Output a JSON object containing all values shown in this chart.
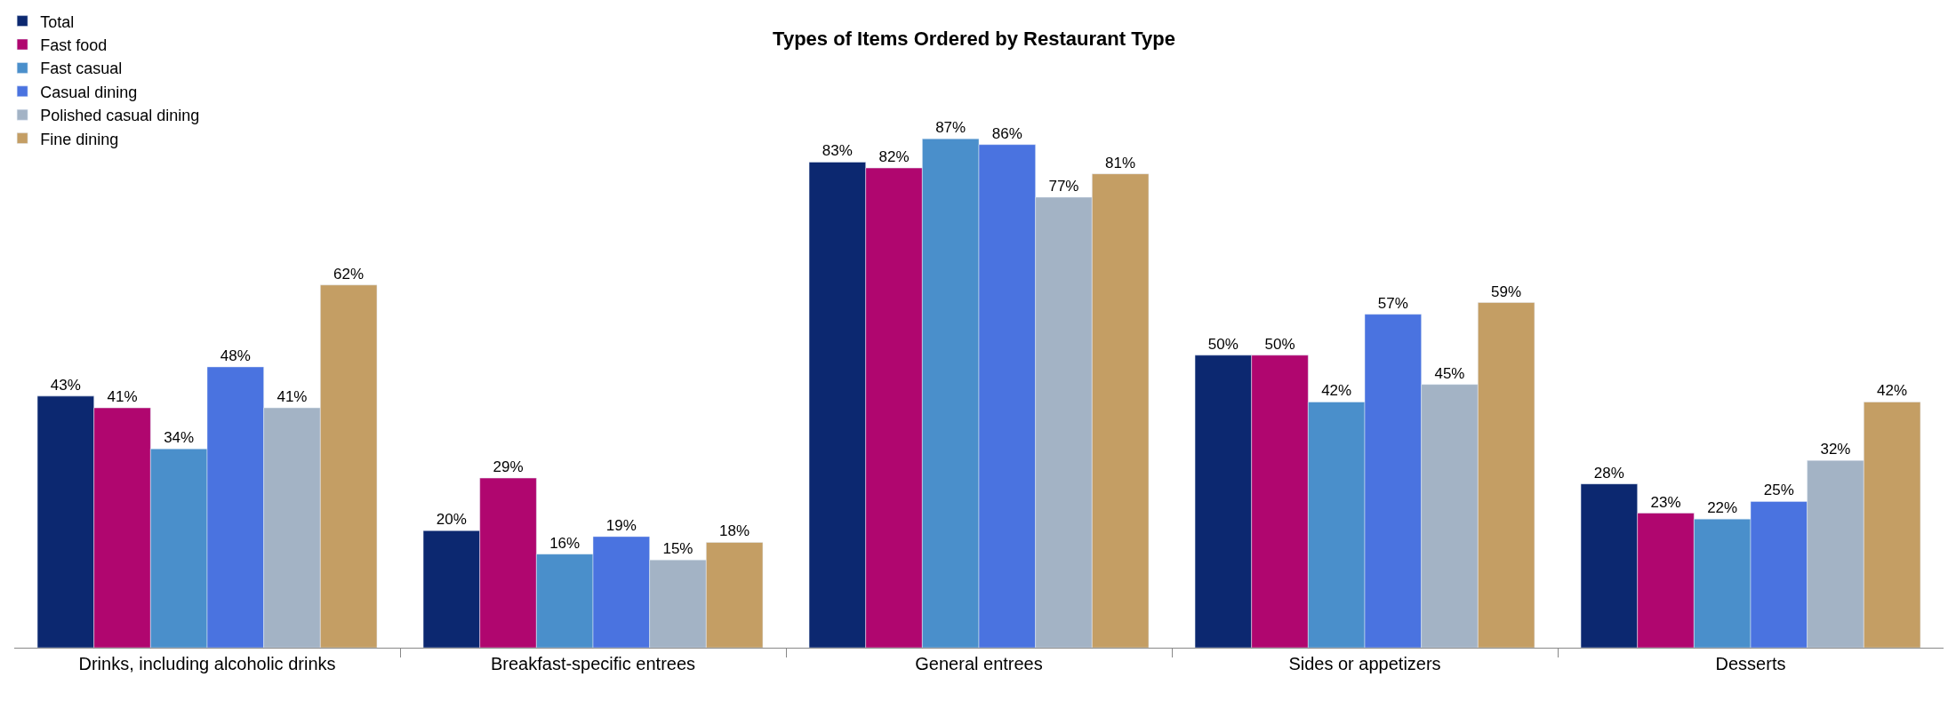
{
  "chart_data": {
    "type": "bar",
    "title": "Types of Items Ordered by Restaurant Type",
    "categories": [
      "Drinks, including alcoholic drinks",
      "Breakfast-specific entrees",
      "General entrees",
      "Sides or appetizers",
      "Desserts"
    ],
    "series": [
      {
        "name": "Total",
        "color": "#0c2870",
        "values": [
          43,
          20,
          83,
          50,
          28
        ],
        "value_labels": [
          "43%",
          "20%",
          "83%",
          "50%",
          "28%"
        ]
      },
      {
        "name": "Fast food",
        "color": "#b0066f",
        "values": [
          41,
          29,
          82,
          50,
          23
        ],
        "value_labels": [
          "41%",
          "29%",
          "82%",
          "50%",
          "23%"
        ]
      },
      {
        "name": "Fast casual",
        "color": "#4a8fcb",
        "values": [
          34,
          16,
          87,
          42,
          22
        ],
        "value_labels": [
          "34%",
          "16%",
          "87%",
          "42%",
          "22%"
        ]
      },
      {
        "name": "Casual dining",
        "color": "#4a73e0",
        "values": [
          48,
          19,
          86,
          57,
          25
        ],
        "value_labels": [
          "48%",
          "19%",
          "86%",
          "57%",
          "25%"
        ]
      },
      {
        "name": "Polished casual dining",
        "color": "#a3b3c5",
        "values": [
          41,
          15,
          77,
          45,
          32
        ],
        "value_labels": [
          "41%",
          "15%",
          "77%",
          "45%",
          "32%"
        ]
      },
      {
        "name": "Fine dining",
        "color": "#c49e64",
        "values": [
          62,
          18,
          81,
          59,
          42
        ],
        "value_labels": [
          "62%",
          "18%",
          "81%",
          "59%",
          "42%"
        ]
      }
    ],
    "legend": "top left"
  }
}
